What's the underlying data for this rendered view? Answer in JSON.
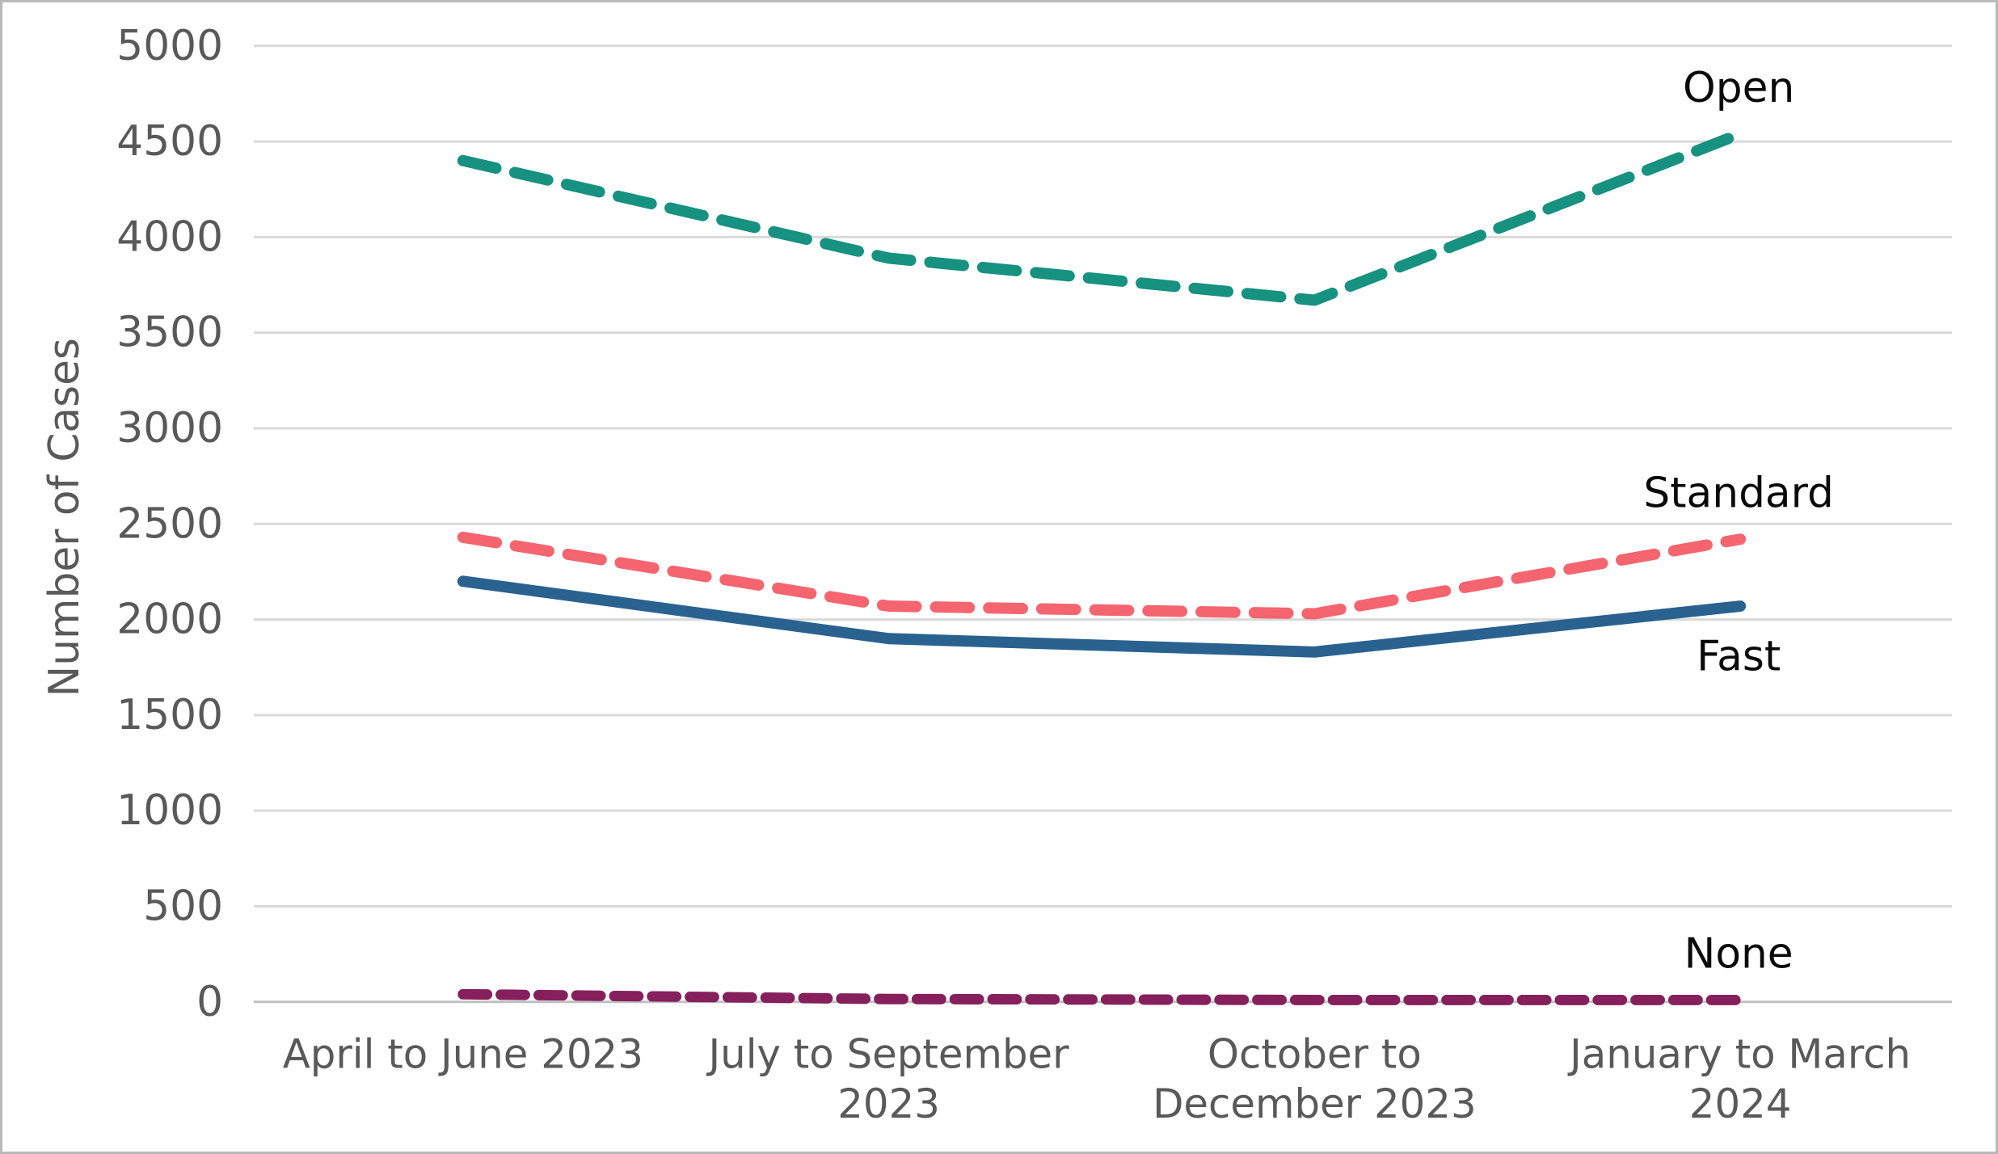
{
  "chart_data": {
    "type": "line",
    "title": "",
    "xlabel": "",
    "ylabel": "Number of Cases",
    "categories": [
      "April to June 2023",
      "July to September 2023",
      "October to December 2023",
      "January to March 2024"
    ],
    "category_lines": [
      [
        "April to June 2023"
      ],
      [
        "July to September",
        "2023"
      ],
      [
        "October to",
        "December 2023"
      ],
      [
        "January to March",
        "2024"
      ]
    ],
    "y_axis": {
      "min": 0,
      "max": 5000,
      "step": 500,
      "tick_labels": [
        "0",
        "500",
        "1000",
        "1500",
        "2000",
        "2500",
        "3000",
        "3500",
        "4000",
        "4500",
        "5000"
      ]
    },
    "grid": "horizontal",
    "legend_position": "line-end-labels",
    "series": [
      {
        "name": "Open",
        "values": [
          4400,
          3890,
          3670,
          4540
        ],
        "color": "#179180",
        "style": "dashed",
        "label_position": "above"
      },
      {
        "name": "Standard",
        "values": [
          2430,
          2070,
          2030,
          2420
        ],
        "color": "#F4656F",
        "style": "dashed",
        "label_position": "above"
      },
      {
        "name": "Fast",
        "values": [
          2200,
          1900,
          1830,
          2070
        ],
        "color": "#2A628F",
        "style": "solid",
        "label_position": "below"
      },
      {
        "name": "None",
        "values": [
          40,
          15,
          10,
          10
        ],
        "color": "#85205C",
        "style": "dashed-short",
        "label_position": "above"
      }
    ],
    "colors": {
      "grid": "#D9D9D9",
      "zero_line": "#BFBFBF",
      "axis_text": "#595959",
      "series_label_text": "#0A0A0A",
      "background": "#FFFFFF"
    }
  }
}
